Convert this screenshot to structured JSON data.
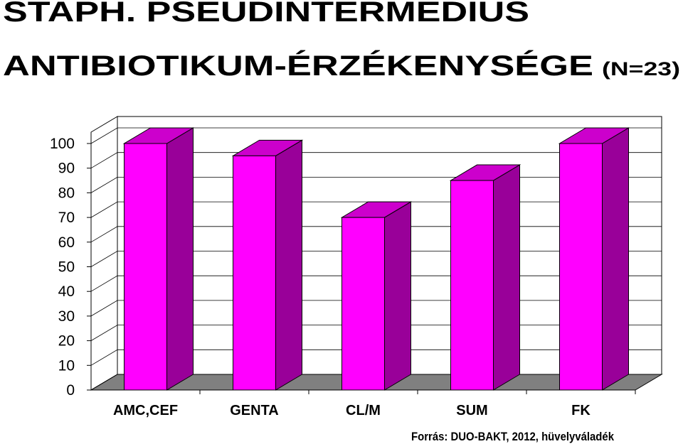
{
  "chart_data": {
    "type": "bar3d",
    "title": "STAPH. PSEUDINTERMEDIUS",
    "subtitle": "ANTIBIOTIKUM-ÉRZÉKENYSÉGE",
    "subtitle_note": "(N=23)",
    "source": "Forrás: DUO-BAKT, 2012, hüvelyváladék",
    "categories": [
      "AMC,CEF",
      "GENTA",
      "CL/M",
      "SUM",
      "FK"
    ],
    "values": [
      100,
      95,
      70,
      85,
      100
    ],
    "color": "#ff00ff",
    "side_color": "#990099",
    "top_color": "#cc00cc",
    "floor_color": "#808080",
    "ylim": [
      0,
      100
    ],
    "yticks": [
      0,
      10,
      20,
      30,
      40,
      50,
      60,
      70,
      80,
      90,
      100
    ],
    "grid": true
  }
}
